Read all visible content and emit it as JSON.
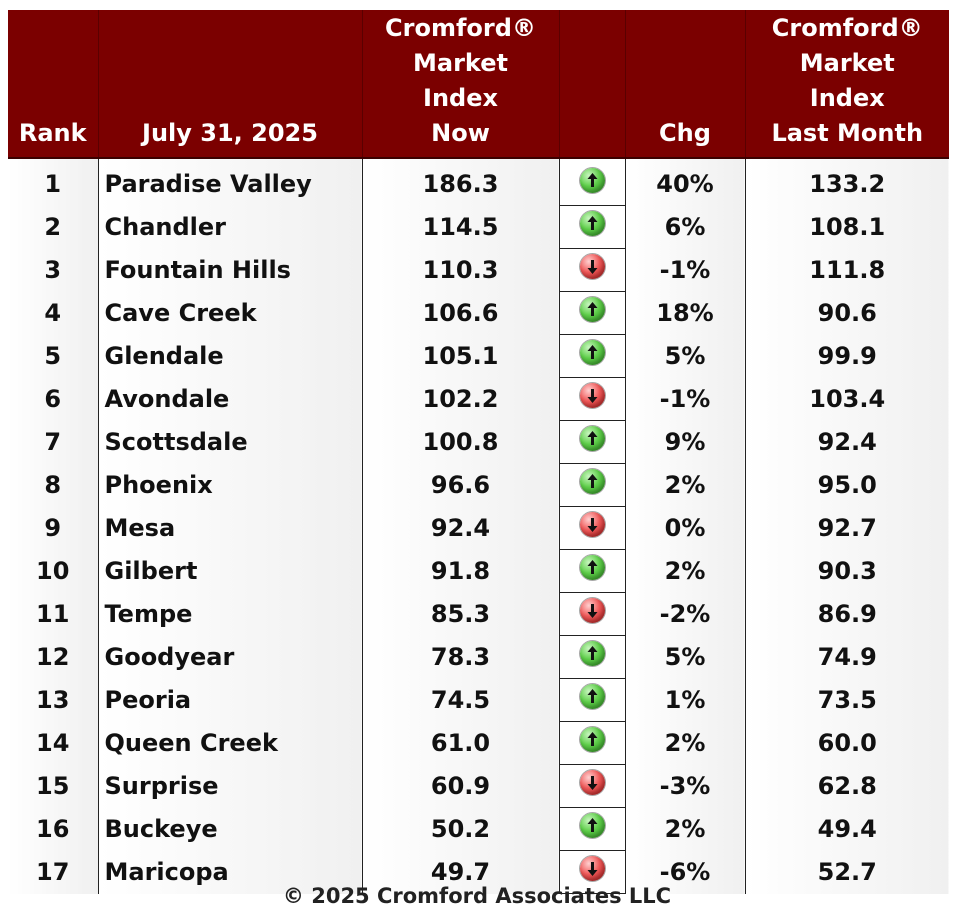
{
  "header": {
    "rank": "Rank",
    "date": "July 31, 2025",
    "index_now": [
      "Cromford®",
      "Market",
      "Index",
      "Now"
    ],
    "arrow": "",
    "chg": "Chg",
    "index_last": [
      "Cromford®",
      "Market",
      "Index",
      "Last Month"
    ]
  },
  "rows": [
    {
      "rank": "1",
      "city": "Paradise Valley",
      "now": "186.3",
      "dir": "up",
      "chg": "40%",
      "last": "133.2"
    },
    {
      "rank": "2",
      "city": "Chandler",
      "now": "114.5",
      "dir": "up",
      "chg": "6%",
      "last": "108.1"
    },
    {
      "rank": "3",
      "city": "Fountain Hills",
      "now": "110.3",
      "dir": "down",
      "chg": "-1%",
      "last": "111.8"
    },
    {
      "rank": "4",
      "city": "Cave Creek",
      "now": "106.6",
      "dir": "up",
      "chg": "18%",
      "last": "90.6"
    },
    {
      "rank": "5",
      "city": "Glendale",
      "now": "105.1",
      "dir": "up",
      "chg": "5%",
      "last": "99.9"
    },
    {
      "rank": "6",
      "city": "Avondale",
      "now": "102.2",
      "dir": "down",
      "chg": "-1%",
      "last": "103.4"
    },
    {
      "rank": "7",
      "city": "Scottsdale",
      "now": "100.8",
      "dir": "up",
      "chg": "9%",
      "last": "92.4"
    },
    {
      "rank": "8",
      "city": "Phoenix",
      "now": "96.6",
      "dir": "up",
      "chg": "2%",
      "last": "95.0"
    },
    {
      "rank": "9",
      "city": "Mesa",
      "now": "92.4",
      "dir": "down",
      "chg": "0%",
      "last": "92.7"
    },
    {
      "rank": "10",
      "city": "Gilbert",
      "now": "91.8",
      "dir": "up",
      "chg": "2%",
      "last": "90.3"
    },
    {
      "rank": "11",
      "city": "Tempe",
      "now": "85.3",
      "dir": "down",
      "chg": "-2%",
      "last": "86.9"
    },
    {
      "rank": "12",
      "city": "Goodyear",
      "now": "78.3",
      "dir": "up",
      "chg": "5%",
      "last": "74.9"
    },
    {
      "rank": "13",
      "city": "Peoria",
      "now": "74.5",
      "dir": "up",
      "chg": "1%",
      "last": "73.5"
    },
    {
      "rank": "14",
      "city": "Queen Creek",
      "now": "61.0",
      "dir": "up",
      "chg": "2%",
      "last": "60.0"
    },
    {
      "rank": "15",
      "city": "Surprise",
      "now": "60.9",
      "dir": "down",
      "chg": "-3%",
      "last": "62.8"
    },
    {
      "rank": "16",
      "city": "Buckeye",
      "now": "50.2",
      "dir": "up",
      "chg": "2%",
      "last": "49.4"
    },
    {
      "rank": "17",
      "city": "Maricopa",
      "now": "49.7",
      "dir": "down",
      "chg": "-6%",
      "last": "52.7"
    }
  ],
  "footer": "© 2025 Cromford Associates LLC",
  "colors": {
    "header_bg": "#7b0000",
    "up": "#3fb82e",
    "down": "#d62828"
  },
  "icons": {
    "up": "green-up-arrow-icon",
    "down": "red-down-arrow-icon"
  }
}
